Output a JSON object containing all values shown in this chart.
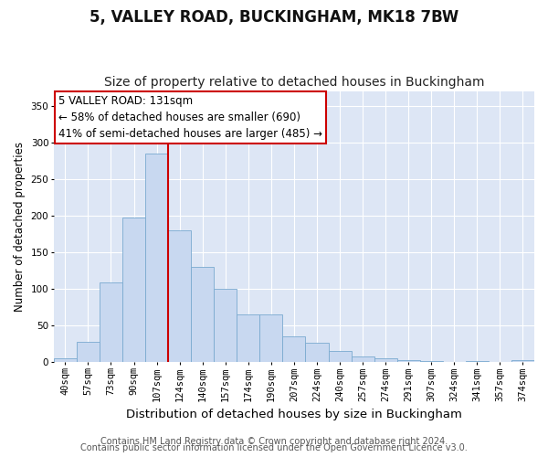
{
  "title1": "5, VALLEY ROAD, BUCKINGHAM, MK18 7BW",
  "title2": "Size of property relative to detached houses in Buckingham",
  "xlabel": "Distribution of detached houses by size in Buckingham",
  "ylabel": "Number of detached properties",
  "categories": [
    "40sqm",
    "57sqm",
    "73sqm",
    "90sqm",
    "107sqm",
    "124sqm",
    "140sqm",
    "157sqm",
    "174sqm",
    "190sqm",
    "207sqm",
    "224sqm",
    "240sqm",
    "257sqm",
    "274sqm",
    "291sqm",
    "307sqm",
    "324sqm",
    "341sqm",
    "357sqm",
    "374sqm"
  ],
  "values": [
    5,
    27,
    108,
    197,
    285,
    180,
    130,
    100,
    65,
    65,
    35,
    26,
    15,
    7,
    5,
    2,
    1,
    0,
    1,
    0,
    2
  ],
  "bar_color": "#c8d8f0",
  "bar_edge_color": "#7aaad0",
  "highlight_line_index": 5,
  "highlight_color": "#cc0000",
  "annotation_text": "5 VALLEY ROAD: 131sqm\n← 58% of detached houses are smaller (690)\n41% of semi-detached houses are larger (485) →",
  "annotation_box_facecolor": "#ffffff",
  "annotation_box_edgecolor": "#cc0000",
  "ylim": [
    0,
    370
  ],
  "yticks": [
    0,
    50,
    100,
    150,
    200,
    250,
    300,
    350
  ],
  "plot_bg_color": "#dde6f5",
  "grid_color": "#ffffff",
  "title1_fontsize": 12,
  "title2_fontsize": 10,
  "xlabel_fontsize": 9.5,
  "ylabel_fontsize": 8.5,
  "tick_fontsize": 7.5,
  "annotation_fontsize": 8.5,
  "footer1": "Contains HM Land Registry data © Crown copyright and database right 2024.",
  "footer2": "Contains public sector information licensed under the Open Government Licence v3.0.",
  "footer_fontsize": 7
}
